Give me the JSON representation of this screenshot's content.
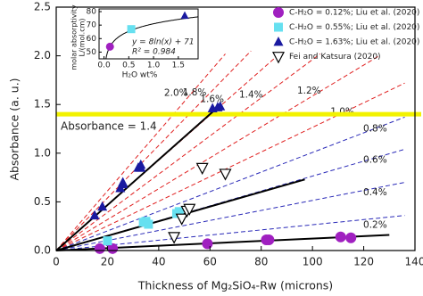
{
  "chart_data": {
    "type": "scatter",
    "xlabel": "Thickness of Mg₂SiO₄-Rw (microns)",
    "ylabel": "Absorbance (a. u.)",
    "xlim": [
      0,
      140
    ],
    "xticks": [
      0,
      20,
      40,
      60,
      80,
      100,
      120,
      140
    ],
    "ylim": [
      0,
      2.5
    ],
    "yticks": [
      {
        "value": 0,
        "label": "0.0"
      },
      0.5,
      {
        "value": 1,
        "label": "1.0"
      },
      1.5,
      {
        "value": 2,
        "label": "2.0"
      },
      2.5
    ],
    "legend": "upper right",
    "series": [
      {
        "name": "C-H₂O = 0.12%; Liu et al. (2020)",
        "color": "#a020c0",
        "marker": "circle",
        "x": [
          17,
          22,
          59,
          82,
          83,
          111,
          115
        ],
        "values": [
          0.02,
          0.02,
          0.07,
          0.11,
          0.11,
          0.14,
          0.13
        ]
      },
      {
        "name": "C-H₂O = 0.55%; Liu et al. (2020)",
        "color": "#66e0f0",
        "marker": "square",
        "x": [
          20,
          34,
          35,
          36,
          47,
          48
        ],
        "values": [
          0.1,
          0.29,
          0.3,
          0.27,
          0.38,
          0.4
        ]
      },
      {
        "name": "C-H₂O = 1.63%; Liu et al. (2020)",
        "color": "#1a1aa0",
        "marker": "triangle",
        "x": [
          15,
          18,
          25,
          26,
          26,
          32,
          33,
          33,
          61,
          63,
          64
        ],
        "values": [
          0.36,
          0.45,
          0.64,
          0.68,
          0.7,
          0.85,
          0.88,
          0.85,
          1.46,
          1.47,
          1.48
        ]
      },
      {
        "name": "Fei and Katsura (2020)",
        "color": "#000000",
        "marker": "open-triangle-down",
        "x": [
          46,
          49,
          51,
          52,
          57,
          66
        ],
        "values": [
          0.14,
          0.33,
          0.41,
          0.43,
          0.85,
          0.79
        ]
      }
    ],
    "fit_lines": [
      {
        "color": "#000000",
        "x": [
          0,
          63
        ],
        "values": [
          0,
          1.47
        ]
      },
      {
        "color": "#000000",
        "x": [
          0,
          97
        ],
        "values": [
          0,
          0.73
        ]
      },
      {
        "color": "#000000",
        "x": [
          0,
          130
        ],
        "values": [
          0,
          0.16
        ]
      }
    ],
    "reference_lines": [
      {
        "label": "2.0%",
        "color": "#e02020",
        "x": [
          0,
          66
        ],
        "values": [
          0,
          2.02
        ]
      },
      {
        "label": "1.8%",
        "color": "#e02020",
        "x": [
          0,
          76
        ],
        "values": [
          0,
          2.05
        ]
      },
      {
        "label": "1.6%",
        "color": "#e02020",
        "x": [
          0,
          88
        ],
        "values": [
          0,
          2.04
        ]
      },
      {
        "label": "1.4%",
        "color": "#e02020",
        "x": [
          0,
          103
        ],
        "values": [
          0,
          2.02
        ]
      },
      {
        "label": "1.2%",
        "color": "#e02020",
        "x": [
          0,
          126
        ],
        "values": [
          0,
          2.0
        ]
      },
      {
        "label": "1.0%",
        "color": "#e02020",
        "x": [
          0,
          136
        ],
        "values": [
          0,
          1.72
        ]
      },
      {
        "label": "0.8%",
        "color": "#2a2ab8",
        "x": [
          0,
          136
        ],
        "values": [
          0,
          1.37
        ]
      },
      {
        "label": "0.6%",
        "color": "#2a2ab8",
        "x": [
          0,
          136
        ],
        "values": [
          0,
          1.04
        ]
      },
      {
        "label": "0.4%",
        "color": "#2a2ab8",
        "x": [
          0,
          136
        ],
        "values": [
          0,
          0.7
        ]
      },
      {
        "label": "0.2%",
        "color": "#2a2ab8",
        "x": [
          0,
          136
        ],
        "values": [
          0,
          0.36
        ]
      }
    ],
    "hline": {
      "value": 1.4,
      "color": "#f2f200",
      "label": "Absorbance = 1.4"
    },
    "inset": {
      "type": "scatter",
      "ylabel": [
        "molar absorptivity",
        "L/(mol.cm)"
      ],
      "xlabel": "H₂O wt%",
      "xlim": [
        -0.1,
        1.9
      ],
      "xticks": [
        {
          "value": 0,
          "label": "0.0"
        },
        0.5,
        {
          "value": 1,
          "label": "1.0"
        },
        1.5
      ],
      "ylim": [
        45,
        82
      ],
      "yticks": [
        50,
        60,
        70,
        80
      ],
      "series": [
        {
          "color": "#a020c0",
          "marker": "circle",
          "x": [
            0.12
          ],
          "values": [
            54
          ]
        },
        {
          "color": "#66e0f0",
          "marker": "square",
          "x": [
            0.55
          ],
          "values": [
            67
          ]
        },
        {
          "color": "#1a1aa0",
          "marker": "triangle",
          "x": [
            1.63
          ],
          "values": [
            77
          ]
        }
      ],
      "fit": {
        "equation": "y = 8ln(x) + 71",
        "slope": 8,
        "intercept": 71,
        "color": "#000000",
        "r2_text": "R² = 0.984"
      }
    }
  }
}
